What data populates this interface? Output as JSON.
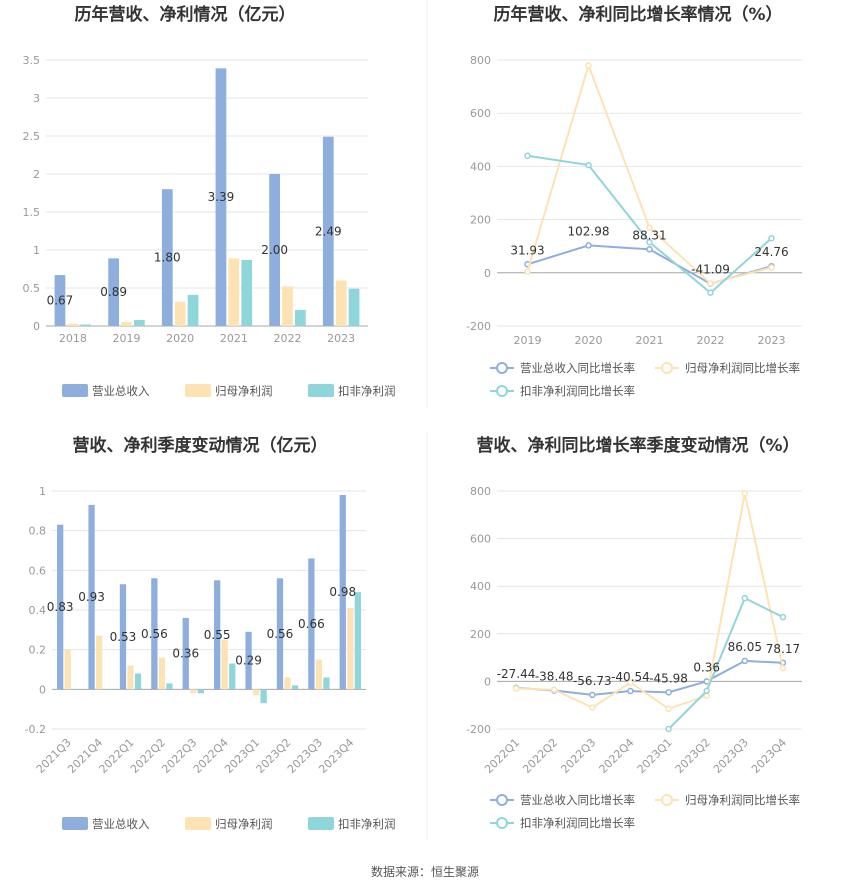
{
  "colors": {
    "revenue": "#8eaedd",
    "parent_profit": "#fde3b3",
    "deducted_profit": "#8fd6db",
    "grid": "#e6e6e6",
    "axis": "#999999"
  },
  "source": "数据来源：恒生聚源",
  "chart_data": [
    {
      "type": "bar",
      "title": "历年营收、净利情况（亿元）",
      "categories": [
        "2018",
        "2019",
        "2020",
        "2021",
        "2022",
        "2023"
      ],
      "ylim": [
        0,
        3.5
      ],
      "yticks": [
        0,
        0.5,
        1,
        1.5,
        2,
        2.5,
        3,
        3.5
      ],
      "ytick_labels": [
        "0",
        "0.5",
        "1",
        "1.5",
        "2",
        "2.5",
        "3",
        "3.5"
      ],
      "legend_position": "bottom",
      "series": [
        {
          "name": "营业总收入",
          "values": [
            0.67,
            0.89,
            1.8,
            3.39,
            2.0,
            2.49
          ],
          "labels": [
            "0.67",
            "0.89",
            "1.80",
            "3.39",
            "2.00",
            "2.49"
          ]
        },
        {
          "name": "归母净利润",
          "values": [
            0.03,
            0.05,
            0.32,
            0.89,
            0.52,
            0.6
          ]
        },
        {
          "name": "扣非净利润",
          "values": [
            0.02,
            0.08,
            0.41,
            0.87,
            0.21,
            0.49
          ]
        }
      ]
    },
    {
      "type": "line",
      "title": "历年营收、净利同比增长率情况（%）",
      "categories": [
        "2019",
        "2020",
        "2021",
        "2022",
        "2023"
      ],
      "ylim": [
        -200,
        800
      ],
      "yticks": [
        -200,
        0,
        200,
        400,
        600,
        800
      ],
      "ytick_labels": [
        "-200",
        "0",
        "200",
        "400",
        "600",
        "800"
      ],
      "legend_position": "bottom",
      "series": [
        {
          "name": "营业总收入同比增长率",
          "values": [
            31.93,
            102.98,
            88.31,
            -41.09,
            24.76
          ],
          "labels": [
            "31.93",
            "102.98",
            "88.31",
            "-41.09",
            "24.76"
          ]
        },
        {
          "name": "归母净利润同比增长率",
          "values": [
            5,
            780,
            170,
            -40,
            20
          ]
        },
        {
          "name": "扣非净利润同比增长率",
          "values": [
            440,
            405,
            115,
            -75,
            130
          ]
        }
      ]
    },
    {
      "type": "bar",
      "title": "营收、净利季度变动情况（亿元）",
      "categories": [
        "2021Q3",
        "2021Q4",
        "2022Q1",
        "2022Q2",
        "2022Q3",
        "2022Q4",
        "2023Q1",
        "2023Q2",
        "2023Q3",
        "2023Q4"
      ],
      "ylim": [
        -0.2,
        1
      ],
      "yticks": [
        -0.2,
        0,
        0.2,
        0.4,
        0.6,
        0.8,
        1
      ],
      "ytick_labels": [
        "-0.2",
        "0",
        "0.2",
        "0.4",
        "0.6",
        "0.8",
        "1"
      ],
      "legend_position": "bottom",
      "series": [
        {
          "name": "营业总收入",
          "values": [
            0.83,
            0.93,
            0.53,
            0.56,
            0.36,
            0.55,
            0.29,
            0.56,
            0.66,
            0.98
          ],
          "labels": [
            "0.83",
            "0.93",
            "0.53",
            "0.56",
            "0.36",
            "0.55",
            "0.29",
            "0.56",
            "0.66",
            "0.98"
          ]
        },
        {
          "name": "归母净利润",
          "values": [
            0.2,
            0.27,
            0.12,
            0.16,
            -0.02,
            0.25,
            -0.03,
            0.06,
            0.15,
            0.41
          ]
        },
        {
          "name": "扣非净利润",
          "values": [
            0.0,
            0.0,
            0.08,
            0.03,
            -0.02,
            0.13,
            -0.07,
            0.02,
            0.06,
            0.49
          ]
        }
      ]
    },
    {
      "type": "line",
      "title": "营收、净利同比增长率季度变动情况（%）",
      "categories": [
        "2022Q1",
        "2022Q2",
        "2022Q3",
        "2022Q4",
        "2023Q1",
        "2023Q2",
        "2023Q3",
        "2023Q4"
      ],
      "ylim": [
        -200,
        800
      ],
      "yticks": [
        -200,
        0,
        200,
        400,
        600,
        800
      ],
      "ytick_labels": [
        "-200",
        "0",
        "200",
        "400",
        "600",
        "800"
      ],
      "legend_position": "bottom",
      "series": [
        {
          "name": "营业总收入同比增长率",
          "values": [
            -27.44,
            -38.48,
            -56.73,
            -40.54,
            -45.98,
            0.36,
            86.05,
            78.17
          ],
          "labels": [
            "-27.44",
            "-38.48",
            "-56.73",
            "-40.54",
            "-45.98",
            "0.36",
            "86.05",
            "78.17"
          ]
        },
        {
          "name": "归母净利润同比增长率",
          "values": [
            -30,
            -35,
            -110,
            -5,
            -115,
            -60,
            790,
            55
          ]
        },
        {
          "name": "扣非净利润同比增长率",
          "values": [
            null,
            null,
            null,
            null,
            -200,
            -40,
            350,
            270
          ]
        }
      ]
    }
  ]
}
